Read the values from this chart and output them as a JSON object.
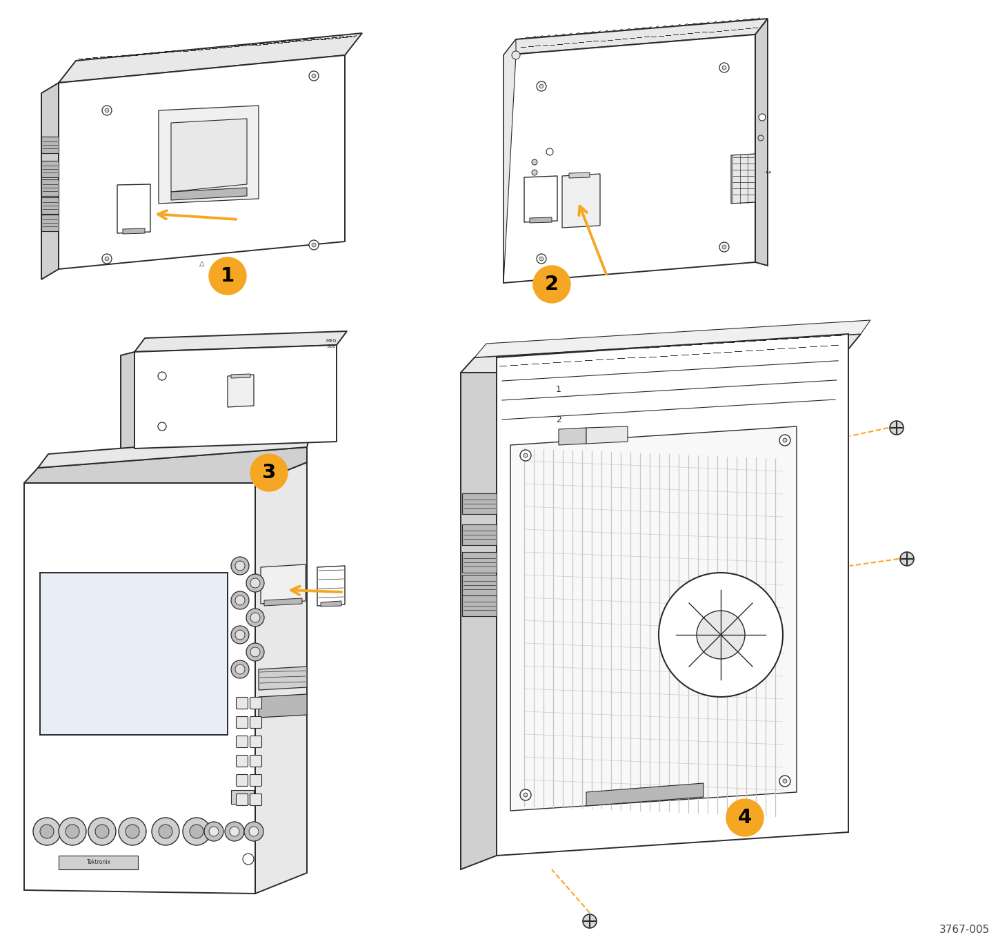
{
  "background_color": "#ffffff",
  "orange_color": "#F5A623",
  "line_color": "#2a2a2a",
  "gray1": "#e8e8e8",
  "gray2": "#d0d0d0",
  "gray3": "#b8b8b8",
  "gray4": "#f5f5f5",
  "figure_number": "3767-005",
  "figsize": [
    14.6,
    13.71
  ],
  "dpi": 100
}
